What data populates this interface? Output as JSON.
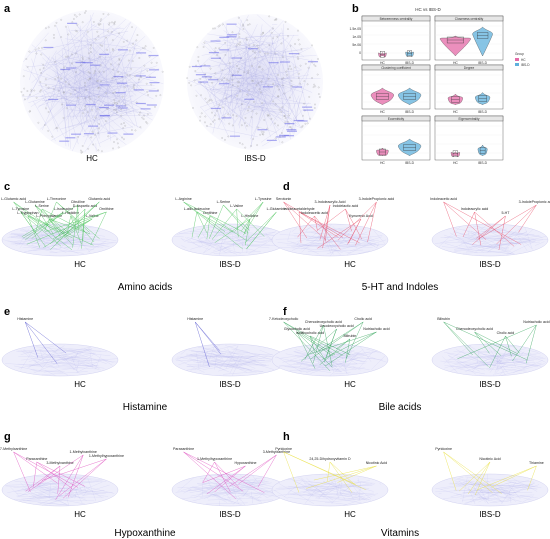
{
  "panel_letters": [
    "a",
    "b",
    "c",
    "d",
    "e",
    "f",
    "g",
    "h"
  ],
  "panel_a": {
    "groups": [
      "HC",
      "IBS-D"
    ]
  },
  "panel_b": {
    "title": "HC vs IBS-D",
    "facets": [
      "Betweenness centrality",
      "Closeness centrality",
      "Clustering coefficient",
      "Degree",
      "Eccentricity",
      "Eigencentrality"
    ],
    "x_labels": [
      "HC",
      "IBS-D"
    ],
    "legend_title": "Group",
    "legend_items": [
      "HC",
      "IBS-D"
    ],
    "tick_texts": [
      "1.5e-05",
      "1e-05",
      "5e-06",
      "0"
    ],
    "colors": {
      "HC": "#e46aa7",
      "IBS-D": "#5fb0dc"
    }
  },
  "panels": {
    "c": {
      "caption": "Amino acids",
      "groups": [
        "HC",
        "IBS-D"
      ],
      "color": "#4cc45c",
      "hc_labels": [
        "L-Glutamic acid",
        "L-Tyrosine",
        "L-Tryptophan",
        "L-Glutamine",
        "L-Serine",
        "L-Phenylalanine",
        "L-Threonine",
        "L-Isoleucine",
        "L-Histidine",
        "Citrulline",
        "D-Aspartic acid",
        "L-Valine",
        "Glutamic acid",
        "Ornithine"
      ],
      "ibs_labels": [
        "L-Arginine",
        "L-allo-Isoleucine",
        "Ornithine",
        "L-Serine",
        "L-Valine",
        "L-Histidine",
        "L-Tyrosine",
        "L-Glutamine"
      ]
    },
    "d": {
      "caption": "5-HT and Indoles",
      "groups": [
        "HC",
        "IBS-D"
      ],
      "color": "#e8506a",
      "hc_labels": [
        "Serotonin",
        "Indoleacetaldehyde",
        "Indoleacetic acid",
        "3-Indoleacrylic Acid",
        "Indolelactic acid",
        "Kynurenic Acid",
        "3-IndolePropionic acid"
      ],
      "ibs_labels": [
        "Indoleacetic acid",
        "Indoleacrylic acid",
        "5-HT",
        "3-IndolePropionic acid"
      ]
    },
    "e": {
      "caption": "Histamine",
      "groups": [
        "HC",
        "IBS-D"
      ],
      "color": "#5a5ad0",
      "hc_labels": [
        "Histamine"
      ],
      "ibs_labels": [
        "Histamine"
      ]
    },
    "f": {
      "caption": "Bile acids",
      "groups": [
        "HC",
        "IBS-D"
      ],
      "color": "#3aa860",
      "hc_labels": [
        "7-Ketodeoxycholic",
        "Glycocholic acid",
        "Isolithocholic acid",
        "Chenodeoxycholic acid",
        "Ursodeoxycholic acid",
        "Bilirubin",
        "Cholic acid",
        "Nutriacholic acid"
      ],
      "ibs_labels": [
        "Bilirubin",
        "Chenodeoxycholic acid",
        "Cholic acid",
        "Nutriacholic acid"
      ]
    },
    "g": {
      "caption": "Hypoxanthine",
      "groups": [
        "HC",
        "IBS-D"
      ],
      "color": "#e050c0",
      "hc_labels": [
        "7-Methylxanthine",
        "Paraxanthine",
        "3-Methylxanthine",
        "1-Methylxanthine",
        "1-Methylhypoxanthine"
      ],
      "ibs_labels": [
        "Paraxanthine",
        "1-Methylhypoxanthine",
        "Hypoxanthine",
        "3-Methylxanthine"
      ]
    },
    "h": {
      "caption": "Vitamins",
      "groups": [
        "HC",
        "IBS-D"
      ],
      "color": "#e8e040",
      "hc_labels": [
        "Pyridoxine",
        "24,25-Dihydroxyvitamin D",
        "Nicotinic Acid"
      ],
      "ibs_labels": [
        "Pyridoxine",
        "Nicotinic Acid",
        "Thiamine"
      ]
    }
  }
}
